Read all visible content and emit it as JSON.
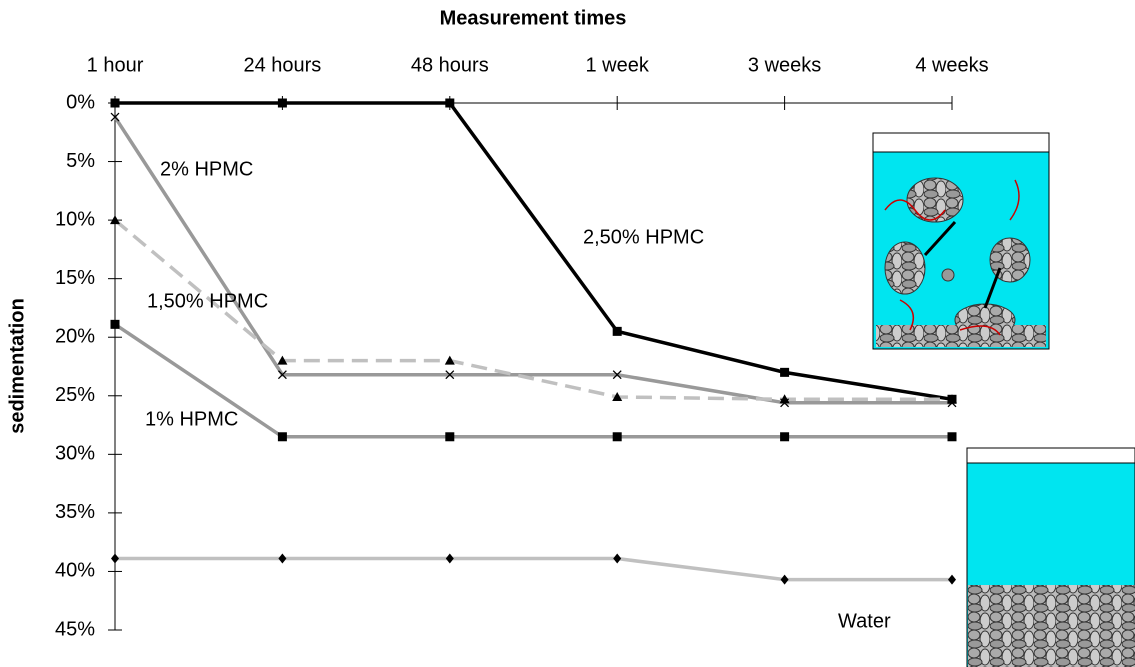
{
  "chart_data": {
    "type": "line",
    "title": "Measurement times",
    "y_label": "sedimentation",
    "categories": [
      "1 hour",
      "24 hours",
      "48 hours",
      "1 week",
      "3 weeks",
      "4 weeks"
    ],
    "ylim": [
      0,
      45
    ],
    "y_inverted": true,
    "yticks": [
      {
        "value": 0,
        "label": "0%"
      },
      {
        "value": 5,
        "label": "5%"
      },
      {
        "value": 10,
        "label": "10%"
      },
      {
        "value": 15,
        "label": "15%"
      },
      {
        "value": 20,
        "label": "20%"
      },
      {
        "value": 25,
        "label": "25%"
      },
      {
        "value": 30,
        "label": "30%"
      },
      {
        "value": 35,
        "label": "35%"
      },
      {
        "value": 40,
        "label": "40%"
      },
      {
        "value": 45,
        "label": "45%"
      }
    ],
    "series": [
      {
        "name": "2,50% HPMC",
        "color": "#000000",
        "marker": "square",
        "dashed": false,
        "values": [
          0,
          0,
          0,
          19.5,
          23,
          25.3
        ]
      },
      {
        "name": "2% HPMC",
        "color": "#999999",
        "marker": "x",
        "dashed": false,
        "values": [
          1.2,
          23.2,
          23.2,
          23.2,
          25.6,
          25.6
        ]
      },
      {
        "name": "1,50% HPMC",
        "color": "#c0c0c0",
        "marker": "triangle",
        "dashed": true,
        "values": [
          10,
          22,
          22,
          25.1,
          25.3,
          25.3
        ]
      },
      {
        "name": "1% HPMC",
        "color": "#999999",
        "marker": "square",
        "dashed": false,
        "values": [
          18.9,
          28.5,
          28.5,
          28.5,
          28.5,
          28.5
        ]
      },
      {
        "name": "Water",
        "color": "#c0c0c0",
        "marker": "diamond",
        "dashed": false,
        "values": [
          38.9,
          38.9,
          38.9,
          38.9,
          40.7,
          40.7
        ]
      }
    ]
  }
}
